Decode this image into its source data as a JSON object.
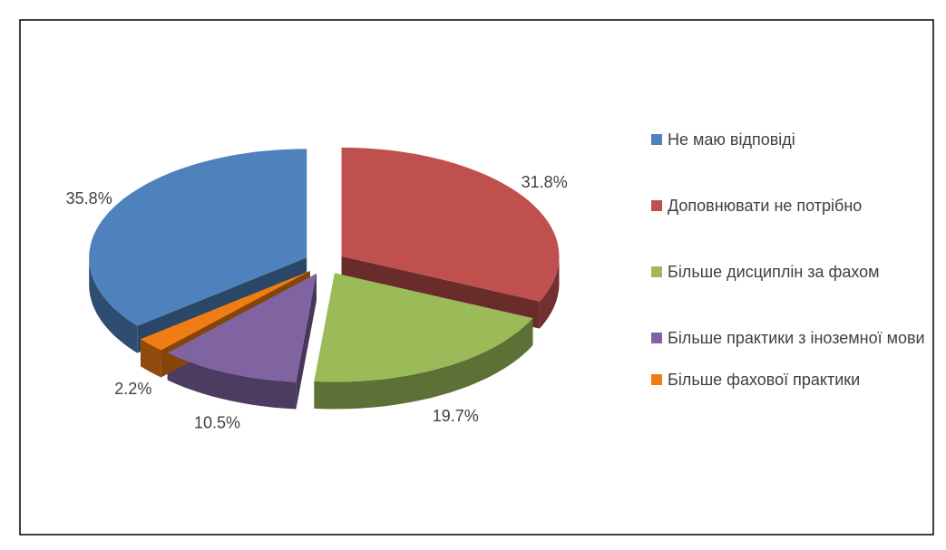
{
  "chart_data": {
    "type": "pie3d",
    "categories": [
      "Не маю відповіді",
      "Доповнювати не потрібно",
      "Більше дисциплін за фахом",
      "Більше практики з іноземної мови",
      "Більше фахової практики"
    ],
    "values": [
      35.8,
      31.8,
      19.7,
      10.5,
      2.2
    ],
    "value_labels": [
      "35.8%",
      "31.8%",
      "19.7%",
      "10.5%",
      "2.2%"
    ],
    "colors": [
      "#4f81bd",
      "#c0504d",
      "#9bbb59",
      "#8064a2",
      "#f07d14"
    ],
    "legend": "right"
  }
}
